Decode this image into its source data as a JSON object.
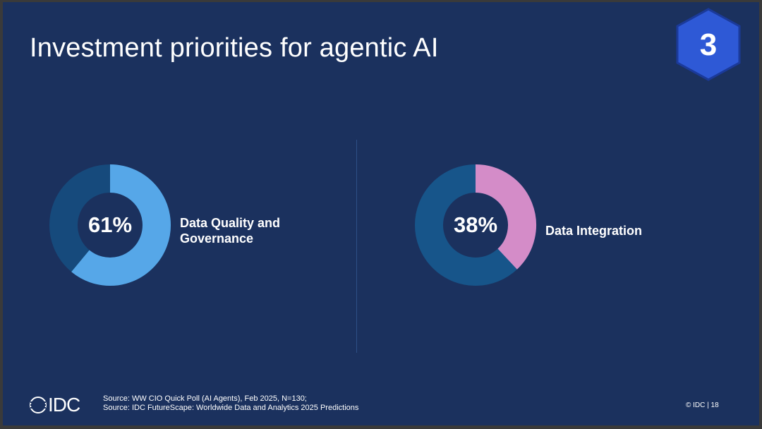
{
  "slide": {
    "title": "Investment priorities for agentic AI",
    "badge_number": "3",
    "sources": [
      "Source: WW CIO Quick Poll (AI Agents), Feb 2025, N=130;",
      "Source: IDC FutureScape: Worldwide Data and Analytics 2025 Predictions"
    ],
    "logo_text": "IDC",
    "copyright": "© IDC",
    "page_number": "18",
    "colors": {
      "background": "#1b315e",
      "ring_track": "#17558a",
      "ring_track_dark": "#164a7c",
      "badge": "#2e59d6"
    }
  },
  "chart_data": [
    {
      "type": "pie",
      "variant": "donut",
      "label": "Data Quality and Governance",
      "label_lines": [
        "Data Quality and",
        "Governance"
      ],
      "value": 61,
      "display": "61%",
      "color": "#56a7e8"
    },
    {
      "type": "pie",
      "variant": "donut",
      "label": "Data Integration",
      "label_lines": [
        "Data Integration"
      ],
      "value": 38,
      "display": "38%",
      "color": "#d48cc8"
    }
  ]
}
